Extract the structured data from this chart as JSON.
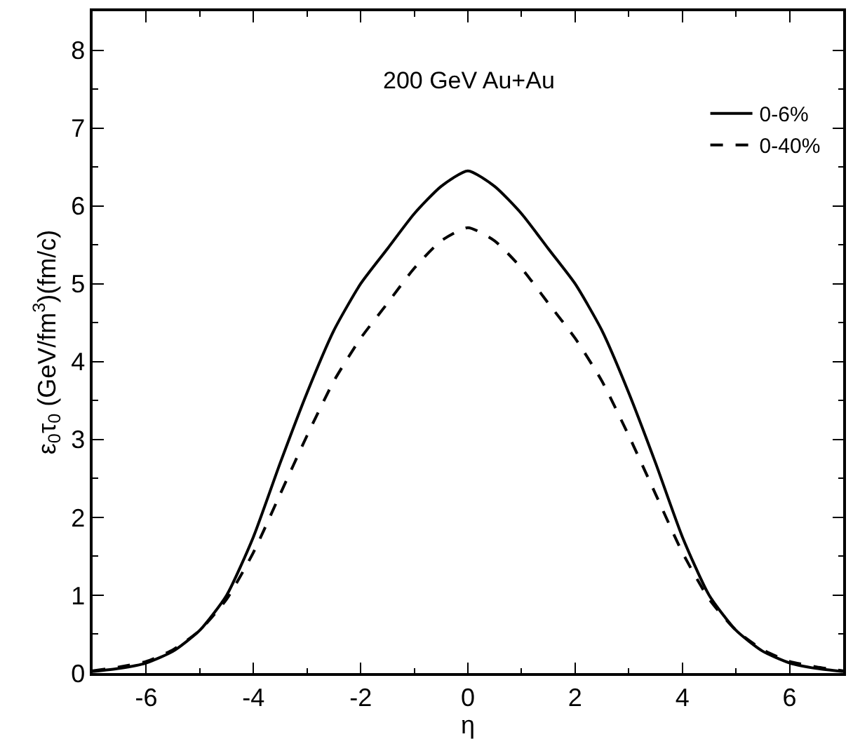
{
  "chart_data": {
    "type": "line",
    "xlabel": "η",
    "ylabel": "ε$_{0}$τ$_{0}$ (GeV/fm$^{3}$)(fm/c)",
    "annotations": [
      "200 GeV Au+Au"
    ],
    "x": [
      -7,
      -6.5,
      -6,
      -5.5,
      -5,
      -4.5,
      -4,
      -3.5,
      -3,
      -2.5,
      -2,
      -1.5,
      -1,
      -0.5,
      0,
      0.5,
      1,
      1.5,
      2,
      2.5,
      3,
      3.5,
      4,
      4.5,
      5,
      5.5,
      6,
      6.5,
      7
    ],
    "series": [
      {
        "name": "0-6%",
        "color": "#000000",
        "line_style": "solid",
        "values": [
          0.02,
          0.06,
          0.13,
          0.28,
          0.55,
          1.0,
          1.75,
          2.7,
          3.6,
          4.4,
          5.0,
          5.45,
          5.9,
          6.25,
          6.45,
          6.25,
          5.9,
          5.45,
          5.0,
          4.4,
          3.6,
          2.7,
          1.75,
          1.0,
          0.55,
          0.28,
          0.13,
          0.06,
          0.02
        ]
      },
      {
        "name": "0-40%",
        "color": "#000000",
        "line_style": "dashed",
        "values": [
          0.03,
          0.08,
          0.15,
          0.3,
          0.55,
          0.95,
          1.55,
          2.3,
          3.05,
          3.75,
          4.3,
          4.75,
          5.2,
          5.55,
          5.72,
          5.55,
          5.2,
          4.75,
          4.3,
          3.75,
          3.05,
          2.3,
          1.55,
          0.95,
          0.55,
          0.3,
          0.15,
          0.08,
          0.03
        ]
      }
    ],
    "xlim": [
      -7,
      7
    ],
    "xticks": [
      -6,
      -4,
      -2,
      0,
      2,
      4,
      6
    ],
    "ylim": [
      0,
      8.5
    ],
    "yticks": [
      0,
      1,
      2,
      3,
      4,
      5,
      6,
      7,
      8
    ],
    "legend": "top right"
  }
}
